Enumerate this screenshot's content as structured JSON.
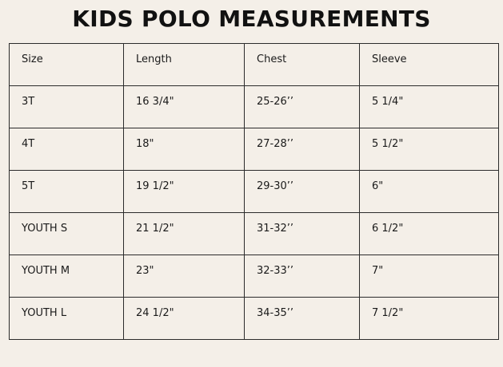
{
  "header": {
    "title": "KIDS POLO MEASUREMENTS"
  },
  "table": {
    "columns": [
      "Size",
      "Length",
      "Chest",
      "Sleeve"
    ],
    "rows": [
      [
        "3T",
        "16 3/4\"",
        "25-26’’",
        "5 1/4\""
      ],
      [
        "4T",
        "18\"",
        "27-28’’",
        "5 1/2\""
      ],
      [
        "5T",
        "19 1/2\"",
        "29-30’’",
        "6\""
      ],
      [
        "YOUTH S",
        "21 1/2\"",
        "31-32’’",
        "6 1/2\""
      ],
      [
        "YOUTH M",
        "23\"",
        "32-33’’",
        "7\""
      ],
      [
        "YOUTH L",
        "24 1/2\"",
        "34-35’’",
        "7 1/2\""
      ]
    ]
  }
}
